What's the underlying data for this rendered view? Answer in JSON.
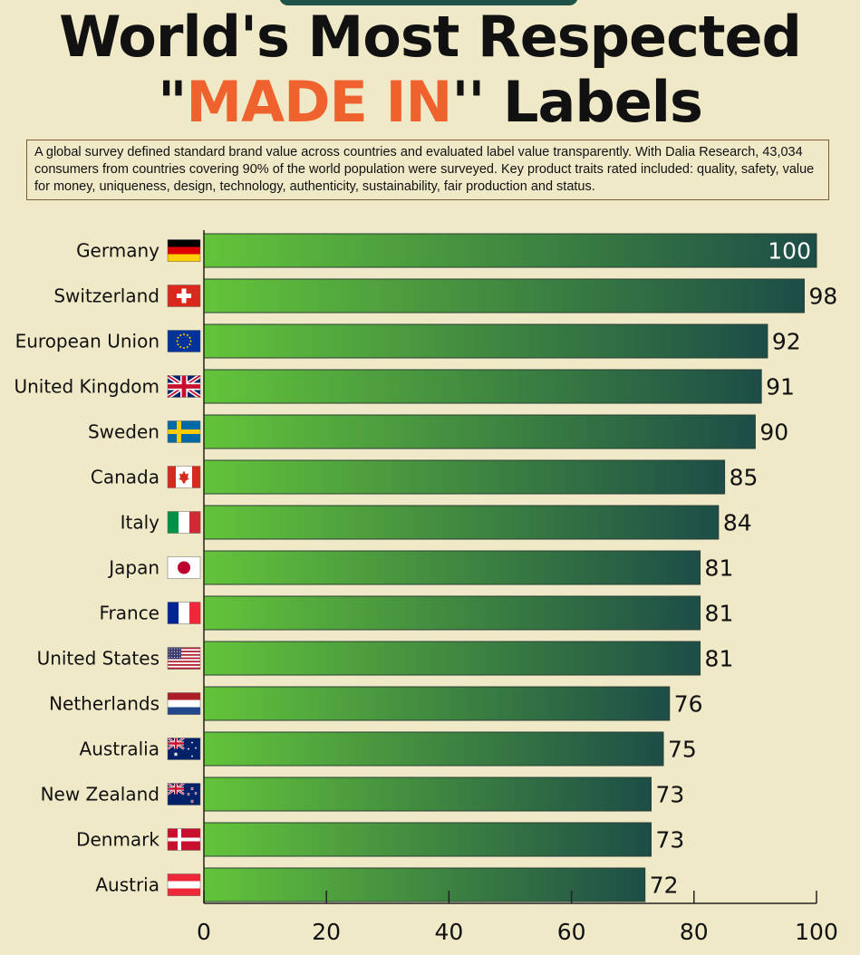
{
  "title": {
    "line1": "World's  Most Respected",
    "line2_open": "\"",
    "line2_accent": "MADE IN",
    "line2_close": "'' Labels"
  },
  "description": "A global survey defined standard brand value across countries and evaluated label value transparently. With Dalia Research, 43,034 consumers from countries covering 90% of the world population were surveyed. Key product traits rated included: quality, safety, value for money, uniqueness, design, technology, authenticity, sustainability, fair production and status.",
  "colors": {
    "background": "#efe9c8",
    "accent": "#f0622d",
    "bar_start": "#63c43a",
    "bar_end": "#1d4d47"
  },
  "chart_data": {
    "type": "bar",
    "orientation": "horizontal",
    "title": "",
    "xlabel": "",
    "ylabel": "",
    "xlim": [
      0,
      100
    ],
    "x_ticks": [
      0,
      20,
      40,
      60,
      80,
      100
    ],
    "grid": false,
    "categories": [
      "Germany",
      "Switzerland",
      "European Union",
      "United Kingdom",
      "Sweden",
      "Canada",
      "Italy",
      "Japan",
      "France",
      "United States",
      "Netherlands",
      "Australia",
      "New Zealand",
      "Denmark",
      "Austria"
    ],
    "values": [
      100,
      98,
      92,
      91,
      90,
      85,
      84,
      81,
      81,
      81,
      76,
      75,
      73,
      73,
      72
    ],
    "flag_icons": [
      "germany-flag-icon",
      "switzerland-flag-icon",
      "eu-flag-icon",
      "uk-flag-icon",
      "sweden-flag-icon",
      "canada-flag-icon",
      "italy-flag-icon",
      "japan-flag-icon",
      "france-flag-icon",
      "usa-flag-icon",
      "netherlands-flag-icon",
      "australia-flag-icon",
      "new-zealand-flag-icon",
      "denmark-flag-icon",
      "austria-flag-icon"
    ]
  }
}
